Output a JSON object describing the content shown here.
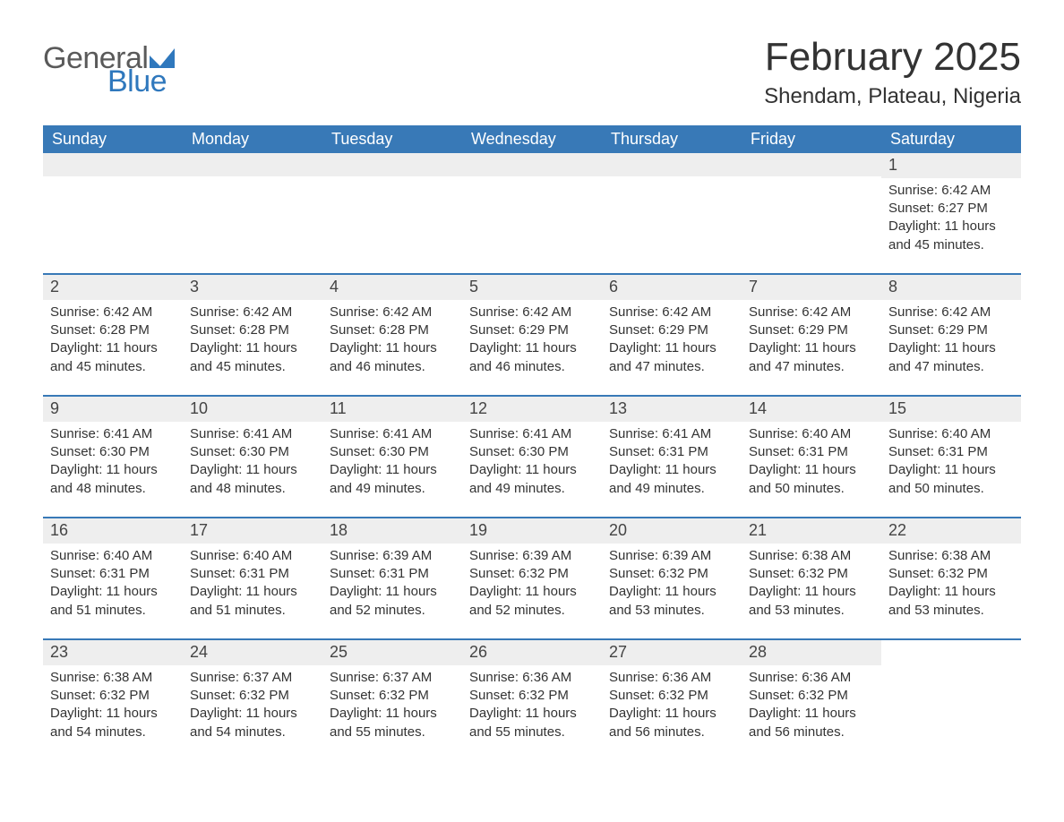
{
  "logo": {
    "word1": "General",
    "word2": "Blue",
    "gray_color": "#5a5a5a",
    "blue_color": "#2f78bd"
  },
  "title": "February 2025",
  "location": "Shendam, Plateau, Nigeria",
  "colors": {
    "header_bg": "#3879b7",
    "header_text": "#ffffff",
    "daynum_bg": "#eeeeee",
    "separator": "#3879b7",
    "body_text": "#333333"
  },
  "day_headers": [
    "Sunday",
    "Monday",
    "Tuesday",
    "Wednesday",
    "Thursday",
    "Friday",
    "Saturday"
  ],
  "first_weekday_index": 6,
  "days": [
    {
      "n": 1,
      "sunrise": "6:42 AM",
      "sunset": "6:27 PM",
      "daylight": "11 hours and 45 minutes."
    },
    {
      "n": 2,
      "sunrise": "6:42 AM",
      "sunset": "6:28 PM",
      "daylight": "11 hours and 45 minutes."
    },
    {
      "n": 3,
      "sunrise": "6:42 AM",
      "sunset": "6:28 PM",
      "daylight": "11 hours and 45 minutes."
    },
    {
      "n": 4,
      "sunrise": "6:42 AM",
      "sunset": "6:28 PM",
      "daylight": "11 hours and 46 minutes."
    },
    {
      "n": 5,
      "sunrise": "6:42 AM",
      "sunset": "6:29 PM",
      "daylight": "11 hours and 46 minutes."
    },
    {
      "n": 6,
      "sunrise": "6:42 AM",
      "sunset": "6:29 PM",
      "daylight": "11 hours and 47 minutes."
    },
    {
      "n": 7,
      "sunrise": "6:42 AM",
      "sunset": "6:29 PM",
      "daylight": "11 hours and 47 minutes."
    },
    {
      "n": 8,
      "sunrise": "6:42 AM",
      "sunset": "6:29 PM",
      "daylight": "11 hours and 47 minutes."
    },
    {
      "n": 9,
      "sunrise": "6:41 AM",
      "sunset": "6:30 PM",
      "daylight": "11 hours and 48 minutes."
    },
    {
      "n": 10,
      "sunrise": "6:41 AM",
      "sunset": "6:30 PM",
      "daylight": "11 hours and 48 minutes."
    },
    {
      "n": 11,
      "sunrise": "6:41 AM",
      "sunset": "6:30 PM",
      "daylight": "11 hours and 49 minutes."
    },
    {
      "n": 12,
      "sunrise": "6:41 AM",
      "sunset": "6:30 PM",
      "daylight": "11 hours and 49 minutes."
    },
    {
      "n": 13,
      "sunrise": "6:41 AM",
      "sunset": "6:31 PM",
      "daylight": "11 hours and 49 minutes."
    },
    {
      "n": 14,
      "sunrise": "6:40 AM",
      "sunset": "6:31 PM",
      "daylight": "11 hours and 50 minutes."
    },
    {
      "n": 15,
      "sunrise": "6:40 AM",
      "sunset": "6:31 PM",
      "daylight": "11 hours and 50 minutes."
    },
    {
      "n": 16,
      "sunrise": "6:40 AM",
      "sunset": "6:31 PM",
      "daylight": "11 hours and 51 minutes."
    },
    {
      "n": 17,
      "sunrise": "6:40 AM",
      "sunset": "6:31 PM",
      "daylight": "11 hours and 51 minutes."
    },
    {
      "n": 18,
      "sunrise": "6:39 AM",
      "sunset": "6:31 PM",
      "daylight": "11 hours and 52 minutes."
    },
    {
      "n": 19,
      "sunrise": "6:39 AM",
      "sunset": "6:32 PM",
      "daylight": "11 hours and 52 minutes."
    },
    {
      "n": 20,
      "sunrise": "6:39 AM",
      "sunset": "6:32 PM",
      "daylight": "11 hours and 53 minutes."
    },
    {
      "n": 21,
      "sunrise": "6:38 AM",
      "sunset": "6:32 PM",
      "daylight": "11 hours and 53 minutes."
    },
    {
      "n": 22,
      "sunrise": "6:38 AM",
      "sunset": "6:32 PM",
      "daylight": "11 hours and 53 minutes."
    },
    {
      "n": 23,
      "sunrise": "6:38 AM",
      "sunset": "6:32 PM",
      "daylight": "11 hours and 54 minutes."
    },
    {
      "n": 24,
      "sunrise": "6:37 AM",
      "sunset": "6:32 PM",
      "daylight": "11 hours and 54 minutes."
    },
    {
      "n": 25,
      "sunrise": "6:37 AM",
      "sunset": "6:32 PM",
      "daylight": "11 hours and 55 minutes."
    },
    {
      "n": 26,
      "sunrise": "6:36 AM",
      "sunset": "6:32 PM",
      "daylight": "11 hours and 55 minutes."
    },
    {
      "n": 27,
      "sunrise": "6:36 AM",
      "sunset": "6:32 PM",
      "daylight": "11 hours and 56 minutes."
    },
    {
      "n": 28,
      "sunrise": "6:36 AM",
      "sunset": "6:32 PM",
      "daylight": "11 hours and 56 minutes."
    }
  ],
  "labels": {
    "sunrise": "Sunrise:",
    "sunset": "Sunset:",
    "daylight": "Daylight:"
  }
}
